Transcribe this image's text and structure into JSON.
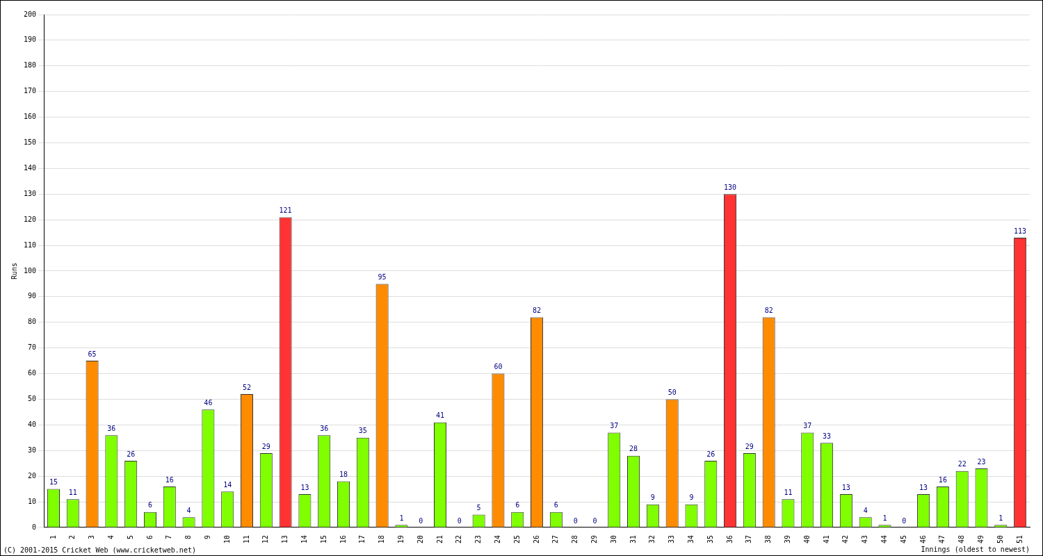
{
  "chart_data": {
    "type": "bar",
    "x_label": "Innings (oldest to newest)",
    "y_label": "Runs",
    "annotations": [
      "(C) 2001-2015 Cricket Web (www.cricketweb.net)"
    ],
    "categories": [
      "1",
      "2",
      "3",
      "4",
      "5",
      "6",
      "7",
      "8",
      "9",
      "10",
      "11",
      "12",
      "13",
      "14",
      "15",
      "16",
      "17",
      "18",
      "19",
      "20",
      "21",
      "22",
      "23",
      "24",
      "25",
      "26",
      "27",
      "28",
      "29",
      "30",
      "31",
      "32",
      "33",
      "34",
      "35",
      "36",
      "37",
      "38",
      "39",
      "40",
      "41",
      "42",
      "43",
      "44",
      "45",
      "46",
      "47",
      "48",
      "49",
      "50",
      "51"
    ],
    "values": [
      15,
      11,
      65,
      36,
      26,
      6,
      16,
      4,
      46,
      14,
      52,
      29,
      121,
      13,
      36,
      18,
      35,
      95,
      1,
      0,
      41,
      0,
      5,
      60,
      6,
      82,
      6,
      0,
      0,
      37,
      28,
      9,
      50,
      9,
      26,
      130,
      29,
      82,
      11,
      37,
      33,
      13,
      4,
      1,
      0,
      13,
      16,
      22,
      23,
      1,
      113
    ],
    "colors": [
      "#80ff00",
      "#80ff00",
      "#ff8c00",
      "#80ff00",
      "#80ff00",
      "#80ff00",
      "#80ff00",
      "#80ff00",
      "#80ff00",
      "#80ff00",
      "#ff8c00",
      "#80ff00",
      "#ff3333",
      "#80ff00",
      "#80ff00",
      "#80ff00",
      "#80ff00",
      "#ff8c00",
      "#80ff00",
      "#80ff00",
      "#80ff00",
      "#80ff00",
      "#80ff00",
      "#ff8c00",
      "#80ff00",
      "#ff8c00",
      "#80ff00",
      "#80ff00",
      "#80ff00",
      "#80ff00",
      "#80ff00",
      "#80ff00",
      "#ff8c00",
      "#80ff00",
      "#80ff00",
      "#ff3333",
      "#80ff00",
      "#ff8c00",
      "#80ff00",
      "#80ff00",
      "#80ff00",
      "#80ff00",
      "#80ff00",
      "#80ff00",
      "#80ff00",
      "#80ff00",
      "#80ff00",
      "#80ff00",
      "#80ff00",
      "#80ff00",
      "#ff3333"
    ],
    "ylim": [
      0,
      200
    ],
    "yticks": [
      0,
      10,
      20,
      30,
      40,
      50,
      60,
      70,
      80,
      90,
      100,
      110,
      120,
      130,
      140,
      150,
      160,
      170,
      180,
      190,
      200
    ],
    "grid": true,
    "data_labels": true,
    "legend": false
  }
}
